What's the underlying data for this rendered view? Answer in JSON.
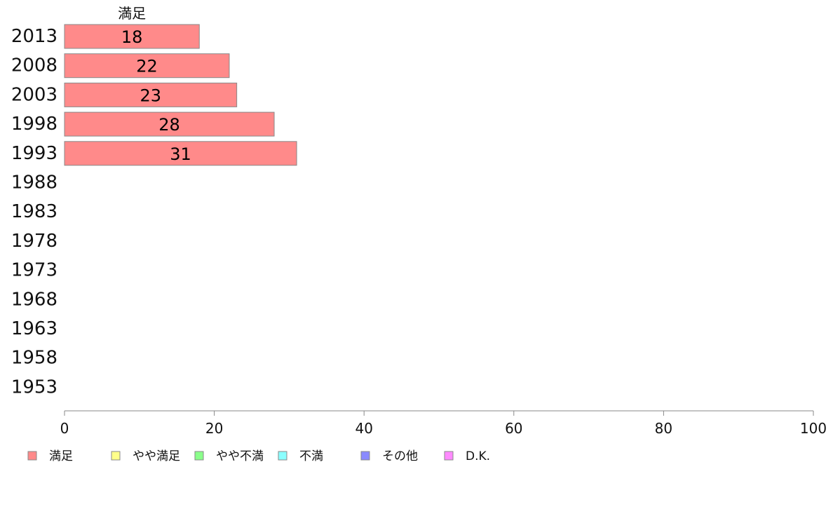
{
  "chart_data": {
    "type": "bar",
    "orientation": "horizontal",
    "stacked": true,
    "categories": [
      "2013",
      "2008",
      "2003",
      "1998",
      "1993",
      "1988",
      "1983",
      "1978",
      "1973",
      "1968",
      "1963",
      "1958",
      "1953"
    ],
    "series": [
      {
        "name": "満足",
        "color": "#ff8a8a",
        "values": [
          18,
          22,
          23,
          28,
          31,
          null,
          null,
          null,
          null,
          null,
          null,
          null,
          null
        ]
      },
      {
        "name": "やや満足",
        "color": "#ffff8a",
        "values": [
          null,
          null,
          null,
          null,
          null,
          null,
          null,
          null,
          null,
          null,
          null,
          null,
          null
        ]
      },
      {
        "name": "やや不満",
        "color": "#8aff8a",
        "values": [
          null,
          null,
          null,
          null,
          null,
          null,
          null,
          null,
          null,
          null,
          null,
          null,
          null
        ]
      },
      {
        "name": "不満",
        "color": "#8affff",
        "values": [
          null,
          null,
          null,
          null,
          null,
          null,
          null,
          null,
          null,
          null,
          null,
          null,
          null
        ]
      },
      {
        "name": "その他",
        "color": "#8a8aff",
        "values": [
          null,
          null,
          null,
          null,
          null,
          null,
          null,
          null,
          null,
          null,
          null,
          null,
          null
        ]
      },
      {
        "name": "D.K.",
        "color": "#ff8aff",
        "values": [
          null,
          null,
          null,
          null,
          null,
          null,
          null,
          null,
          null,
          null,
          null,
          null,
          null
        ]
      }
    ],
    "series_title": "満足",
    "xticks": [
      "0",
      "20",
      "40",
      "60",
      "80",
      "100"
    ],
    "xlim": [
      0,
      100
    ],
    "grid": false,
    "legend_position": "bottom-left"
  }
}
